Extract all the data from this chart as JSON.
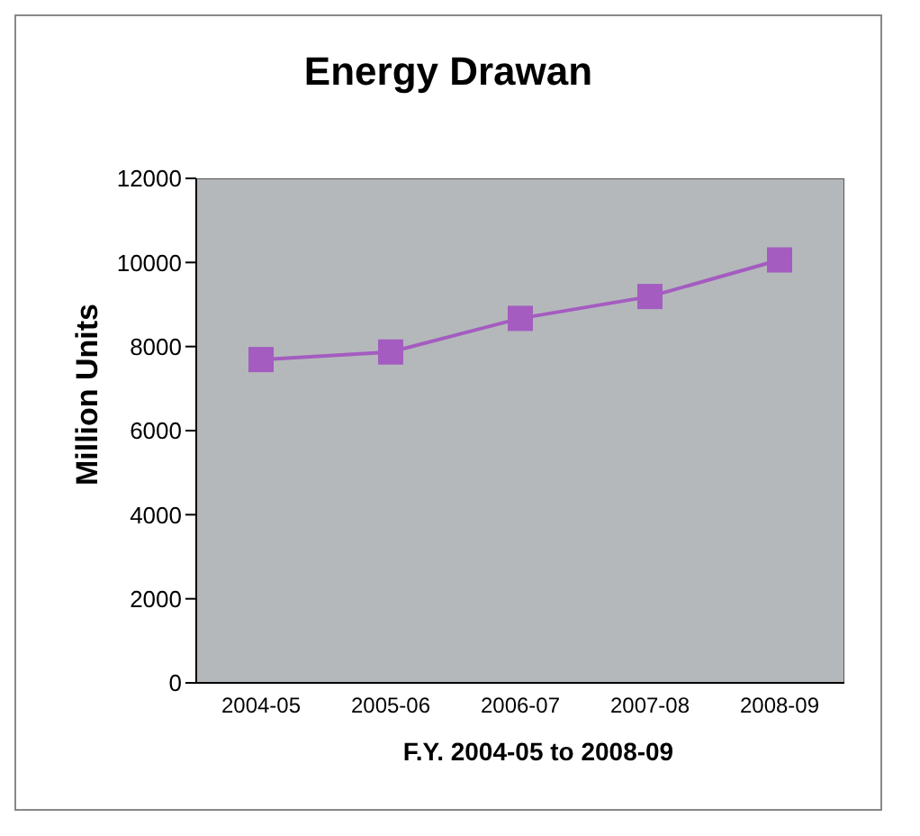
{
  "chart_data": {
    "type": "line",
    "title": "Energy Drawan",
    "xlabel": "F.Y. 2004-05 to 2008-09",
    "ylabel": "Million Units",
    "categories": [
      "2004-05",
      "2005-06",
      "2006-07",
      "2007-08",
      "2008-09"
    ],
    "series": [
      {
        "color": "#a45cc0",
        "values": [
          7690,
          7870,
          8670,
          9190,
          10060
        ]
      }
    ],
    "ylim": [
      0,
      12000
    ],
    "yticks": [
      0,
      2000,
      4000,
      6000,
      8000,
      10000,
      12000
    ],
    "grid": false,
    "marker": "square",
    "line_style": "solid"
  }
}
